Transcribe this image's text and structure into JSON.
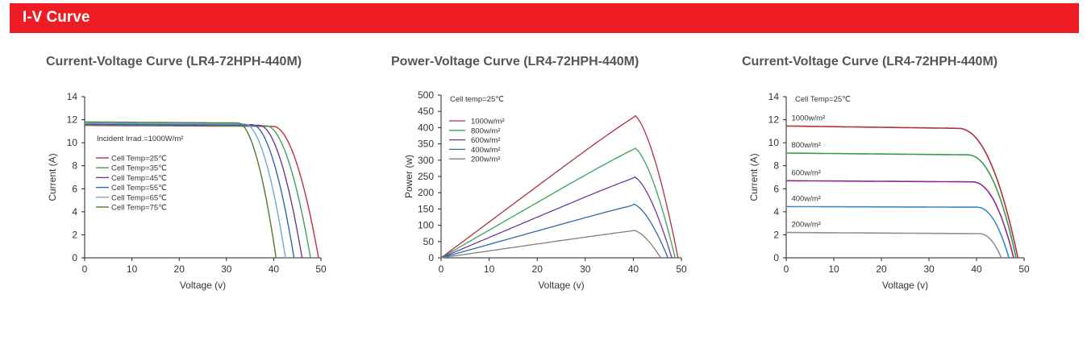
{
  "header": {
    "title": "I-V Curve"
  },
  "chart_data": [
    {
      "type": "line",
      "title": "Current-Voltage Curve (LR4-72HPH-440M)",
      "xlabel": "Voltage (v)",
      "ylabel": "Current (A)",
      "xlim": [
        0,
        50
      ],
      "ylim": [
        0,
        14
      ],
      "xticks": [
        0,
        10,
        20,
        30,
        40,
        50
      ],
      "yticks": [
        0,
        2,
        4,
        6,
        8,
        10,
        12,
        14
      ],
      "annotation": "Incident Irrad.=1000W/m²",
      "legend_position": "left",
      "series": [
        {
          "name": "Cell Temp=25℃",
          "color": "#c0303a",
          "isc": 11.5,
          "voc": 49.5,
          "knee": 40
        },
        {
          "name": "Cell Temp=35℃",
          "color": "#3aa35a",
          "isc": 11.55,
          "voc": 47.8,
          "knee": 38.5
        },
        {
          "name": "Cell Temp=45℃",
          "color": "#6a3d8a",
          "isc": 11.6,
          "voc": 46.0,
          "knee": 37
        },
        {
          "name": "Cell Temp=55℃",
          "color": "#2e6aa8",
          "isc": 11.65,
          "voc": 44.3,
          "knee": 35.5
        },
        {
          "name": "Cell Temp=65℃",
          "color": "#6fa8d6",
          "isc": 11.7,
          "voc": 42.5,
          "knee": 34
        },
        {
          "name": "Cell Temp=75℃",
          "color": "#4e7a2e",
          "isc": 11.8,
          "voc": 40.5,
          "knee": 32.5
        }
      ]
    },
    {
      "type": "line",
      "title": "Power-Voltage Curve (LR4-72HPH-440M)",
      "xlabel": "Voltage (v)",
      "ylabel": "Power (w)",
      "xlim": [
        0,
        50
      ],
      "ylim": [
        0,
        500
      ],
      "xticks": [
        0,
        10,
        20,
        30,
        40,
        50
      ],
      "yticks": [
        0,
        50,
        100,
        150,
        200,
        250,
        300,
        350,
        400,
        450,
        500
      ],
      "annotation": "Cell temp=25℃",
      "legend_position": "top-left",
      "series": [
        {
          "name": "1000w/m²",
          "color": "#b03040",
          "vmp": 40,
          "pmax": 440,
          "voc": 49.3
        },
        {
          "name": "800w/m²",
          "color": "#3aa35a",
          "vmp": 40,
          "pmax": 340,
          "voc": 48.7
        },
        {
          "name": "600w/m²",
          "color": "#6a3d9a",
          "vmp": 40,
          "pmax": 250,
          "voc": 48.0
        },
        {
          "name": "400w/m²",
          "color": "#2e6aa8",
          "vmp": 40,
          "pmax": 165,
          "voc": 47.2
        },
        {
          "name": "200w/m²",
          "color": "#808080",
          "vmp": 40,
          "pmax": 85,
          "voc": 45.7
        }
      ]
    },
    {
      "type": "line",
      "title": "Current-Voltage Curve (LR4-72HPH-440M)",
      "xlabel": "Voltage (v)",
      "ylabel": "Current (A)",
      "xlim": [
        0,
        50
      ],
      "ylim": [
        0,
        14
      ],
      "xticks": [
        0,
        10,
        20,
        30,
        40,
        50
      ],
      "yticks": [
        0,
        2,
        4,
        6,
        8,
        10,
        12,
        14
      ],
      "annotation": "Cell Temp=25℃",
      "legend_position": "inline",
      "series": [
        {
          "name": "1000w/m²",
          "color": "#b03040",
          "isc": 11.45,
          "voc": 48.7,
          "knee": 36,
          "flat_end": 11.25
        },
        {
          "name": "800w/m²",
          "color": "#3a9a4a",
          "isc": 9.1,
          "voc": 48.3,
          "knee": 38,
          "flat_end": 8.95
        },
        {
          "name": "600w/m²",
          "color": "#8a2a8a",
          "isc": 6.7,
          "voc": 47.8,
          "knee": 39,
          "flat_end": 6.6
        },
        {
          "name": "400w/m²",
          "color": "#3a8ac0",
          "isc": 4.45,
          "voc": 46.8,
          "knee": 40,
          "flat_end": 4.4
        },
        {
          "name": "200w/m²",
          "color": "#909090",
          "isc": 2.2,
          "voc": 45.2,
          "knee": 40.5,
          "flat_end": 2.1
        }
      ]
    }
  ]
}
